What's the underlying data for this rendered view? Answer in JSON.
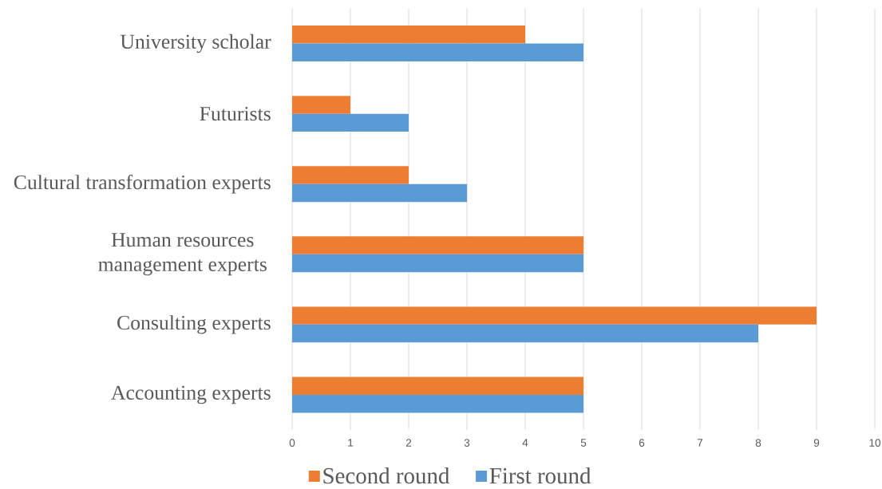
{
  "chart_data": {
    "type": "bar",
    "orientation": "horizontal",
    "categories": [
      "University scholar",
      "Futurists",
      "Cultural transformation experts",
      "Human resources management experts",
      "Consulting experts",
      "Accounting experts"
    ],
    "series": [
      {
        "name": "Second round",
        "color": "#ed7d31",
        "values": [
          4,
          1,
          2,
          5,
          9,
          5
        ]
      },
      {
        "name": "First round",
        "color": "#5b9bd5",
        "values": [
          5,
          2,
          3,
          5,
          8,
          5
        ]
      }
    ],
    "xlim": [
      0,
      10
    ],
    "xticks": [
      0,
      1,
      2,
      3,
      4,
      5,
      6,
      7,
      8,
      9,
      10
    ],
    "grid": "x",
    "legend": "bottom"
  }
}
